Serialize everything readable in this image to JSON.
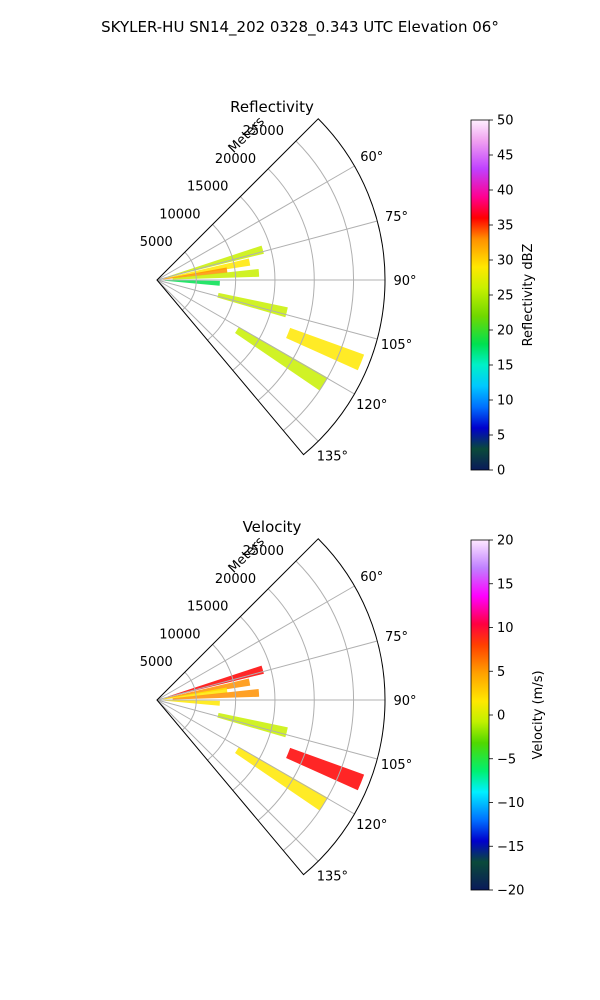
{
  "figure_title": "SKYLER-HU  SN14_202  0328_0.343 UTC Elevation 06°",
  "colors": {
    "background": "#ffffff",
    "grid": "#b0b0b0",
    "frame": "#000000"
  },
  "chart_data": [
    {
      "type": "heatmap",
      "projection": "polar-sector",
      "title": "Reflectivity",
      "range_label": "Meters",
      "range_ticks": [
        5000,
        10000,
        15000,
        20000,
        25000
      ],
      "range_max": 29000,
      "angle_ticks": [
        "60°",
        "75°",
        "90°",
        "105°",
        "120°",
        "135°"
      ],
      "angle_tick_values": [
        60,
        75,
        90,
        105,
        120,
        135
      ],
      "angle_range": [
        45,
        140
      ],
      "grid": true,
      "colorbar": {
        "label": "Reflectivity dBZ",
        "min": 0,
        "max": 50,
        "ticks": [
          "0",
          "5",
          "10",
          "15",
          "20",
          "25",
          "30",
          "35",
          "40",
          "45",
          "50"
        ]
      },
      "echoes": [
        {
          "az": 74,
          "r": [
            1500,
            14000
          ],
          "dBZ": 24
        },
        {
          "az": 79,
          "r": [
            1000,
            12000
          ],
          "dBZ": 30
        },
        {
          "az": 82,
          "r": [
            800,
            9000
          ],
          "dBZ": 34
        },
        {
          "az": 86,
          "r": [
            2000,
            13000
          ],
          "dBZ": 22
        },
        {
          "az": 93,
          "r": [
            1000,
            8000
          ],
          "dBZ": 15
        },
        {
          "az": 104,
          "r": [
            8000,
            17000
          ],
          "dBZ": 20
        },
        {
          "az": 112,
          "r": [
            18000,
            28000
          ],
          "dBZ": 26
        },
        {
          "az": 122,
          "r": [
            12000,
            25000
          ],
          "dBZ": 24
        }
      ]
    },
    {
      "type": "heatmap",
      "projection": "polar-sector",
      "title": "Velocity",
      "range_label": "Meters",
      "range_ticks": [
        5000,
        10000,
        15000,
        20000,
        25000
      ],
      "range_max": 29000,
      "angle_ticks": [
        "60°",
        "75°",
        "90°",
        "105°",
        "120°",
        "135°"
      ],
      "angle_tick_values": [
        60,
        75,
        90,
        105,
        120,
        135
      ],
      "angle_range": [
        45,
        140
      ],
      "grid": true,
      "colorbar": {
        "label": "Velocity (m/s)",
        "min": -20,
        "max": 20,
        "ticks": [
          "−20",
          "−15",
          "−10",
          "−5",
          "0",
          "5",
          "10",
          "15",
          "20"
        ]
      },
      "echoes": [
        {
          "az": 74,
          "r": [
            1500,
            14000
          ],
          "v": 10
        },
        {
          "az": 79,
          "r": [
            1000,
            12000
          ],
          "v": 8
        },
        {
          "az": 82,
          "r": [
            800,
            9000
          ],
          "v": 2
        },
        {
          "az": 86,
          "r": [
            2000,
            13000
          ],
          "v": 6
        },
        {
          "az": 93,
          "r": [
            1000,
            8000
          ],
          "v": 1
        },
        {
          "az": 104,
          "r": [
            8000,
            17000
          ],
          "v": -5
        },
        {
          "az": 112,
          "r": [
            18000,
            28000
          ],
          "v": 10
        },
        {
          "az": 122,
          "r": [
            12000,
            25000
          ],
          "v": 4
        }
      ]
    }
  ]
}
